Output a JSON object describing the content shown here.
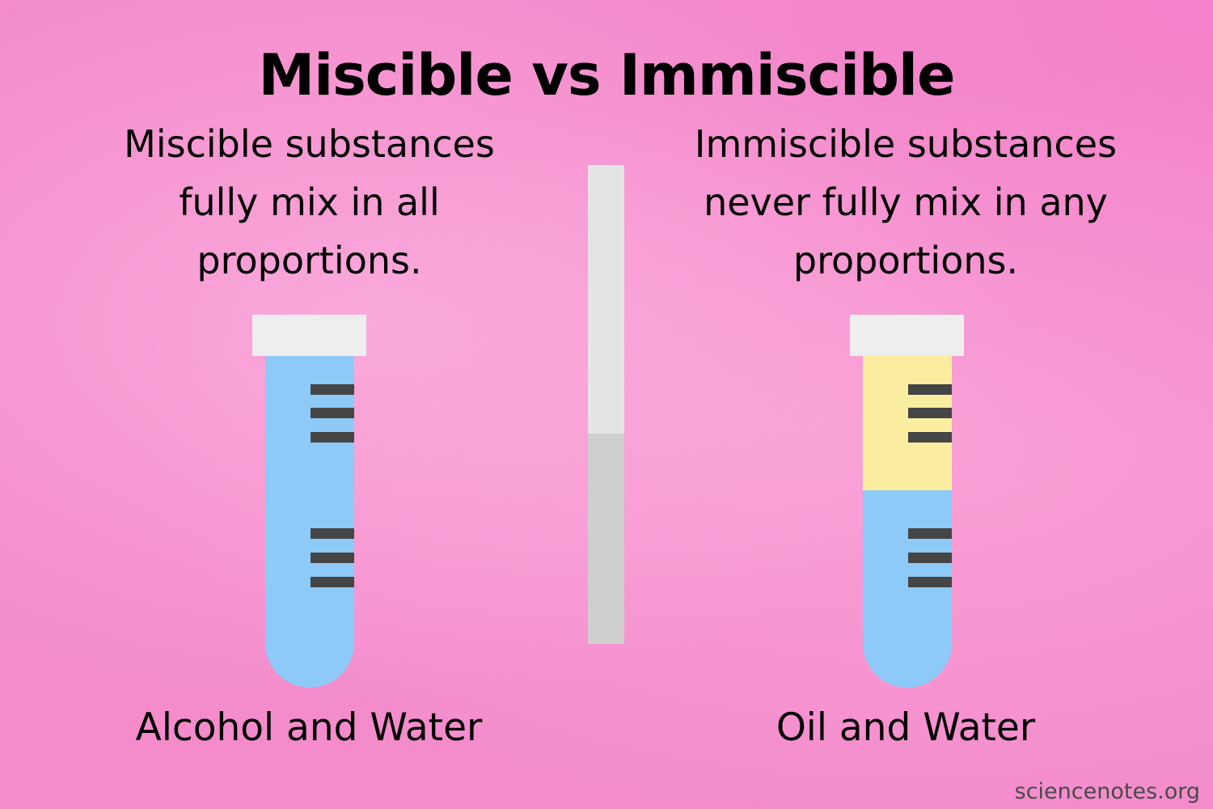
{
  "title": "Miscible vs Immiscible",
  "left": {
    "description_lines": [
      "Miscible substances",
      "fully mix in all",
      "proportions."
    ],
    "caption": "Alcohol and Water"
  },
  "right": {
    "description_lines": [
      "Immiscible substances",
      "never fully mix in any",
      "proportions."
    ],
    "caption": "Oil and Water"
  },
  "credit": "sciencenotes.org",
  "colors": {
    "background": "#f48ccc",
    "water": "#8ecaf8",
    "oil": "#fbeda0",
    "cap": "#eeeeee",
    "tick_marks": "#454545",
    "divider_top": "#e4e4e4",
    "divider_bottom": "#cfcfcf"
  }
}
